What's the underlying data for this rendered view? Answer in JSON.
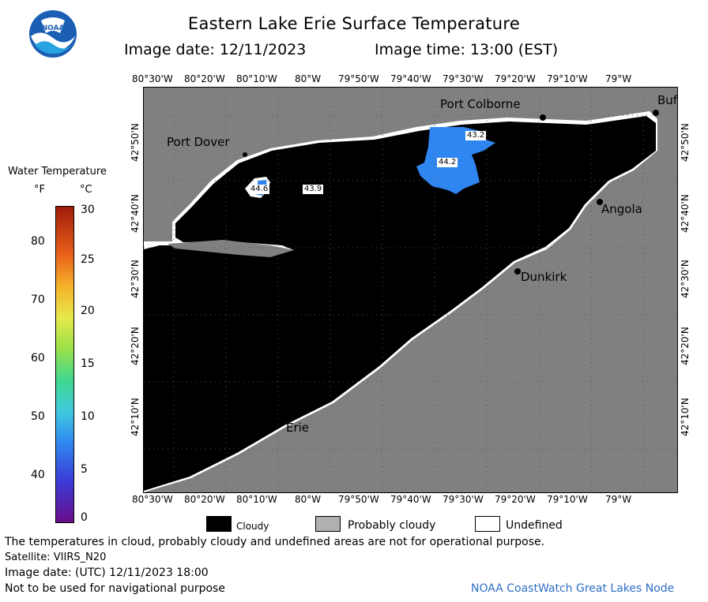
{
  "title": "Eastern Lake Erie Surface Temperature",
  "image_date": "Image date: 12/11/2023",
  "image_time": "Image time: 13:00 (EST)",
  "lon_ticks": [
    "80°30'W",
    "80°20'W",
    "80°10'W",
    "80°W",
    "79°50'W",
    "79°40'W",
    "79°30'W",
    "79°20'W",
    "79°10'W",
    "79°W"
  ],
  "lat_ticks": [
    "42°50'N",
    "42°40'N",
    "42°30'N",
    "42°20'N",
    "42°10'N"
  ],
  "colorbar": {
    "title": "Water Temperature",
    "unit_f": "°F",
    "unit_c": "°C",
    "f_ticks": [
      "80",
      "70",
      "60",
      "50",
      "40"
    ],
    "c_ticks": [
      "30",
      "25",
      "20",
      "15",
      "10",
      "5",
      "0"
    ]
  },
  "cities": {
    "port_colborne": "Port Colborne",
    "port_dover": "Port Dover",
    "buffalo": "Buf",
    "angola": "Angola",
    "dunkirk": "Dunkirk",
    "erie": "Erie"
  },
  "temp_labels": {
    "t1": "43.2",
    "t2": "44.2",
    "t3": "44.6",
    "t4": "43.9"
  },
  "legend": {
    "cloudy": "Cloudy",
    "probably_cloudy": "Probably cloudy",
    "undefined": "Undefined"
  },
  "footer": {
    "disclaimer": "The temperatures in cloud, probably cloudy and undefined areas are not for operational purpose.",
    "satellite": "Satellite: VIIRS_N20",
    "utc_date": "Image date: (UTC) 12/11/2023  18:00",
    "navigation": "Not to be used for navigational purpose",
    "credit": "NOAA CoastWatch Great Lakes Node"
  },
  "logo_text": "NOAA",
  "colors": {
    "land": "#808080",
    "cloud": "#000000",
    "water_temp": "#2f86f0",
    "credit": "#2f6fc8"
  }
}
